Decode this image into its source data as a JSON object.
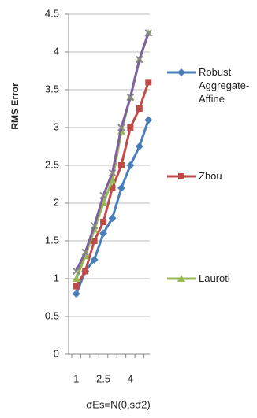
{
  "chart_data": {
    "type": "line",
    "y_label": "RMS Error",
    "x_label": "σEs=N(0,sσ2)",
    "categories": [
      "1",
      null,
      null,
      "2.5",
      null,
      null,
      "4",
      null,
      null
    ],
    "series": [
      {
        "name": "Robust Aggregate-Affine",
        "color": "#4a7ebb",
        "marker": "diamond",
        "values": [
          0.8,
          1.1,
          1.25,
          1.6,
          1.8,
          2.2,
          2.5,
          2.75,
          3.1
        ]
      },
      {
        "name": "Zhou",
        "color": "#be4b48",
        "marker": "square",
        "values": [
          0.9,
          1.1,
          1.5,
          1.75,
          2.2,
          2.5,
          3.0,
          3.25,
          3.6
        ]
      },
      {
        "name": "Lauroti",
        "color": "#98b954",
        "marker": "triangle",
        "values": [
          1.0,
          1.3,
          1.65,
          2.0,
          2.3,
          2.95,
          3.4,
          3.9,
          4.25
        ]
      },
      {
        "color": "#7d60a0",
        "marker": "x",
        "values": [
          1.1,
          1.35,
          1.7,
          2.1,
          2.4,
          3.0,
          3.4,
          3.9,
          4.25
        ]
      }
    ],
    "ylim": [
      0,
      4.5
    ],
    "yticks": [
      0,
      0.5,
      1,
      1.5,
      2,
      2.5,
      3,
      3.5,
      4,
      4.5
    ],
    "grid": true
  }
}
